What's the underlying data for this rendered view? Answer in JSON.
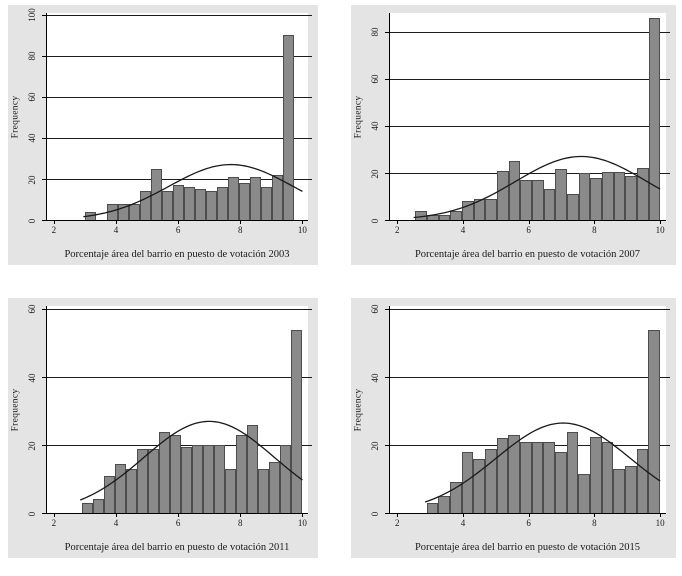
{
  "figure": {
    "description": "2x2 grid of Stata-style histograms with overlaid normal density curves",
    "background": "#ffffff"
  },
  "style": {
    "panel_bg": "#e4e4e4",
    "plot_bg": "#ffffff",
    "bar_fill": "#8a8a8a",
    "bar_stroke": "#4d4d4d",
    "grid_color": "#1c1c1c",
    "axis_color": "#000000",
    "curve_color": "#1a1a1a",
    "text_color": "#1a1a1a"
  },
  "chart_data": [
    {
      "type": "bar",
      "subtype": "histogram",
      "xlabel": "Porcentaje área del barrio en puesto de votación 2003",
      "ylabel": "Frequency",
      "xlim": [
        2,
        10
      ],
      "xlim_display": [
        1.78,
        10.18
      ],
      "xticks": [
        2,
        4,
        6,
        8,
        10
      ],
      "ylim": [
        0,
        100
      ],
      "ymax_display": 100.8,
      "yticks": [
        0,
        20,
        40,
        60,
        80,
        100
      ],
      "grid": true,
      "legend": "none",
      "bin_start": 3.0,
      "bin_width": 0.355,
      "values": [
        4,
        0,
        8,
        8,
        8,
        14,
        25,
        14,
        17,
        16,
        15,
        14,
        16,
        21,
        18,
        21,
        16,
        22,
        90
      ],
      "normal_curve": {
        "mean": 7.7,
        "sd": 2.0,
        "peak": 27,
        "x_start": 2.95,
        "x_end": 10
      }
    },
    {
      "type": "bar",
      "subtype": "histogram",
      "xlabel": "Porcentaje área del barrio en puesto de votación 2007",
      "ylabel": "Frequency",
      "xlim": [
        2,
        10
      ],
      "xlim_display": [
        1.78,
        10.18
      ],
      "xticks": [
        2,
        4,
        6,
        8,
        10
      ],
      "ylim": [
        0,
        80
      ],
      "ymax_display": 88,
      "yticks": [
        0,
        20,
        40,
        60,
        80
      ],
      "grid": true,
      "legend": "none",
      "bin_start": 2.55,
      "bin_width": 0.355,
      "values": [
        4,
        2,
        2,
        4,
        8,
        9,
        9,
        21,
        25,
        17,
        17,
        13,
        21.5,
        11,
        20,
        18,
        20.5,
        20.5,
        18.5,
        22,
        86
      ],
      "normal_curve": {
        "mean": 7.6,
        "sd": 2.0,
        "peak": 27,
        "x_start": 2.5,
        "x_end": 10
      }
    },
    {
      "type": "bar",
      "subtype": "histogram",
      "xlabel": "Porcentaje área del barrio en puesto de votación 2011",
      "ylabel": "Frequency",
      "xlim": [
        2,
        10
      ],
      "xlim_display": [
        1.78,
        10.18
      ],
      "xticks": [
        2,
        4,
        6,
        8,
        10
      ],
      "ylim": [
        0,
        60
      ],
      "ymax_display": 61,
      "yticks": [
        0,
        20,
        40,
        60
      ],
      "grid": true,
      "legend": "none",
      "bin_start": 2.9,
      "bin_width": 0.355,
      "values": [
        3,
        4,
        11,
        14.5,
        13,
        19,
        19,
        24,
        23,
        19.5,
        20,
        20,
        20,
        13,
        23,
        26,
        13,
        15,
        20,
        54
      ],
      "normal_curve": {
        "mean": 7.0,
        "sd": 2.1,
        "peak": 27,
        "x_start": 2.85,
        "x_end": 10
      }
    },
    {
      "type": "bar",
      "subtype": "histogram",
      "xlabel": "Porcentaje área del barrio en puesto de votación 2015",
      "ylabel": "Frequency",
      "xlim": [
        2,
        10
      ],
      "xlim_display": [
        1.78,
        10.18
      ],
      "xticks": [
        2,
        4,
        6,
        8,
        10
      ],
      "ylim": [
        0,
        60
      ],
      "ymax_display": 61,
      "yticks": [
        0,
        20,
        40,
        60
      ],
      "grid": true,
      "legend": "none",
      "bin_start": 2.9,
      "bin_width": 0.355,
      "values": [
        3,
        5,
        9,
        18,
        16,
        19,
        22,
        23,
        21,
        21,
        21,
        18,
        24,
        11.5,
        22.5,
        21,
        13,
        14,
        19,
        54
      ],
      "normal_curve": {
        "mean": 7.05,
        "sd": 2.05,
        "peak": 26.5,
        "x_start": 2.85,
        "x_end": 10
      }
    }
  ]
}
